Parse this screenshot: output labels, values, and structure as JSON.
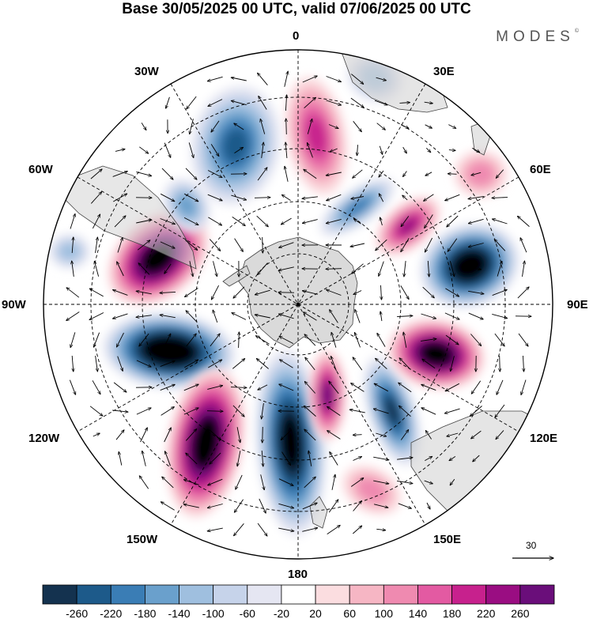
{
  "header": {
    "title": "Base 30/05/2025 00 UTC, valid 07/06/2025 00 UTC",
    "brand": "MODES"
  },
  "map": {
    "projection": "south-polar-stereographic",
    "labels": {
      "top": "0",
      "top_right": "30E",
      "upper_right": "60E",
      "right": "90E",
      "lower_right": "120E",
      "bottom_right": "150E",
      "bottom": "180",
      "bottom_left": "150W",
      "lower_left": "120W",
      "left": "90W",
      "upper_left": "60W",
      "top_left": "30W"
    },
    "colors": {
      "land": "#d9d9d9",
      "grid": "#000000"
    }
  },
  "colorbar": {
    "ticks": [
      "-260",
      "-220",
      "-180",
      "-140",
      "-100",
      "-60",
      "-20",
      "20",
      "60",
      "100",
      "140",
      "180",
      "220",
      "260"
    ],
    "colors": [
      "#14324f",
      "#1d5a8a",
      "#3a7db5",
      "#6aa0cc",
      "#9fbfdf",
      "#c6d3ea",
      "#e5e6f2",
      "#ffffff",
      "#fbdde0",
      "#f6b6c4",
      "#ef8ab0",
      "#e35aa2",
      "#c7218d",
      "#9a0d82",
      "#6a0e7a"
    ]
  },
  "vector_reference": {
    "value": "30"
  }
}
